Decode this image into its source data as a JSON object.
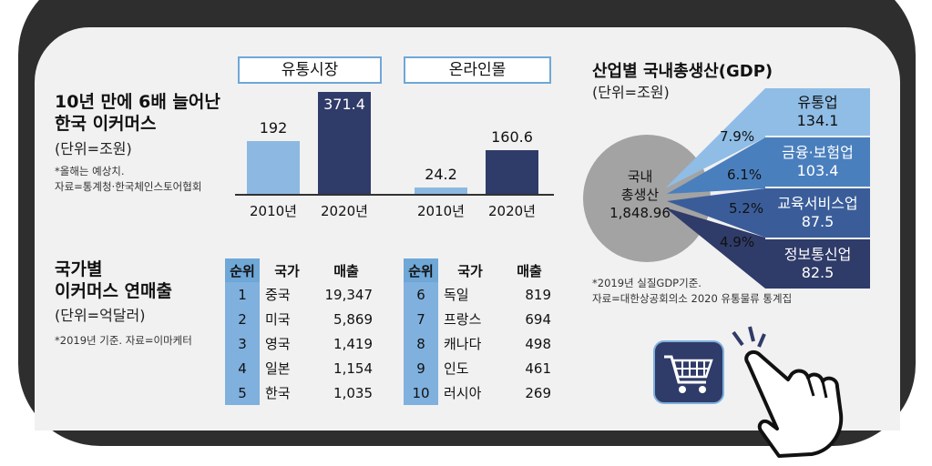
{
  "ecommerce": {
    "title_line1": "10년 만에 6배 늘어난",
    "title_line2": "한국 이커머스",
    "unit": "(단위=조원)",
    "note_line1": "*올해는 예상치.",
    "note_line2": "자료=통계청·한국체인스토어협회"
  },
  "country": {
    "title_line1": "국가별",
    "title_line2": "이커머스 연매출",
    "unit": "(단위=억달러)",
    "note": "*2019년 기준. 자료=이마케터",
    "headers": [
      "순위",
      "국가",
      "매출"
    ],
    "left_rows": [
      [
        "1",
        "중국",
        "19,347"
      ],
      [
        "2",
        "미국",
        "5,869"
      ],
      [
        "3",
        "영국",
        "1,419"
      ],
      [
        "4",
        "일본",
        "1,154"
      ],
      [
        "5",
        "한국",
        "1,035"
      ]
    ],
    "right_rows": [
      [
        "6",
        "독일",
        "819"
      ],
      [
        "7",
        "프랑스",
        "694"
      ],
      [
        "8",
        "캐나다",
        "498"
      ],
      [
        "9",
        "인도",
        "461"
      ],
      [
        "10",
        "러시아",
        "269"
      ]
    ]
  },
  "gdp": {
    "title": "산업별 국내총생산(GDP)",
    "unit": "(단위=조원)",
    "center_line1": "국내",
    "center_line2": "총생산",
    "center_value": "1,848.96",
    "note_line1": "*2019년 실질GDP기준.",
    "note_line2": "자료=대한상공회의소 2020 유통물류 통계집"
  },
  "colors": {
    "bar_2010": "#8db8e2",
    "bar_2020": "#2f3b68",
    "pie_main": "#a3a3a3",
    "sector1": "#8fbde6",
    "sector2": "#4a7fbe",
    "sector3": "#3a5d9a",
    "sector4": "#2f3b68"
  },
  "chart_data": [
    {
      "type": "bar",
      "title": "유통시장",
      "categories": [
        "2010년",
        "2020년"
      ],
      "values": [
        192,
        371.4
      ],
      "value_labels": [
        "192",
        "371.4"
      ],
      "ylim": [
        0,
        400
      ]
    },
    {
      "type": "bar",
      "title": "온라인몰",
      "categories": [
        "2010년",
        "2020년"
      ],
      "values": [
        24.2,
        160.6
      ],
      "value_labels": [
        "24.2",
        "160.6"
      ],
      "ylim": [
        0,
        400
      ]
    },
    {
      "type": "pie",
      "title": "산업별 국내총생산(GDP)",
      "total": 1848.96,
      "slices": [
        {
          "name": "유통업",
          "value": 134.1,
          "value_label": "134.1",
          "pct": 7.9,
          "pct_label": "7.9%"
        },
        {
          "name": "금융·보험업",
          "value": 103.4,
          "value_label": "103.4",
          "pct": 6.1,
          "pct_label": "6.1%"
        },
        {
          "name": "교육서비스업",
          "value": 87.5,
          "value_label": "87.5",
          "pct": 5.2,
          "pct_label": "5.2%"
        },
        {
          "name": "정보통신업",
          "value": 82.5,
          "value_label": "82.5",
          "pct": 4.9,
          "pct_label": "4.9%"
        }
      ]
    }
  ]
}
